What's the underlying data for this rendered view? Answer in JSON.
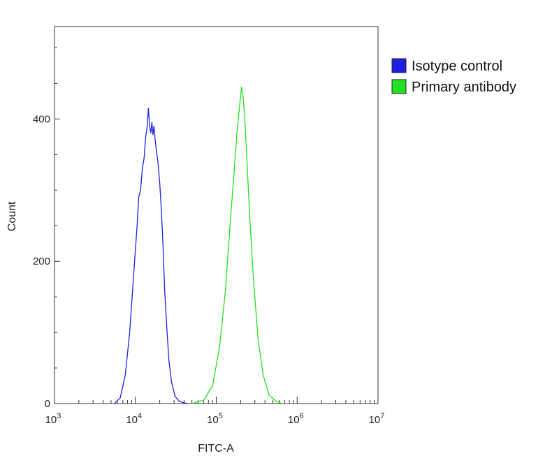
{
  "chart_data": {
    "type": "line",
    "title": "",
    "xlabel": "FITC-A",
    "ylabel": "Count",
    "x_scale": "log",
    "xlim": [
      1000,
      10000000
    ],
    "ylim": [
      0,
      530
    ],
    "grid": false,
    "legend_placement": "right-top-outside",
    "x_ticks": [
      {
        "value": 1000,
        "base": "10",
        "exp": "3"
      },
      {
        "value": 10000,
        "base": "10",
        "exp": "4"
      },
      {
        "value": 100000,
        "base": "10",
        "exp": "5"
      },
      {
        "value": 1000000,
        "base": "10",
        "exp": "6"
      },
      {
        "value": 10000000,
        "base": "10",
        "exp": "7"
      }
    ],
    "y_ticks": [
      {
        "value": 0,
        "label": "0"
      },
      {
        "value": 200,
        "label": "200"
      },
      {
        "value": 400,
        "label": "400"
      }
    ],
    "series": [
      {
        "name": "Isotype control",
        "color": "#1f1fe0",
        "x": [
          5500,
          6500,
          7500,
          8500,
          9500,
          10500,
          11000,
          11600,
          12200,
          12800,
          13400,
          14000,
          14500,
          15000,
          15500,
          16000,
          16500,
          17000,
          17500,
          18200,
          19000,
          20000,
          21000,
          22000,
          23000,
          24500,
          26000,
          28000,
          31000,
          35000,
          40000,
          45000
        ],
        "y": [
          0,
          8,
          40,
          100,
          180,
          250,
          290,
          300,
          330,
          345,
          375,
          390,
          415,
          390,
          380,
          395,
          378,
          390,
          372,
          355,
          340,
          310,
          270,
          220,
          160,
          105,
          60,
          30,
          10,
          3,
          1,
          0
        ]
      },
      {
        "name": "Primary antibody",
        "color": "#22e022",
        "x": [
          50000,
          70000,
          90000,
          110000,
          130000,
          150000,
          165000,
          180000,
          195000,
          205000,
          215000,
          225000,
          240000,
          260000,
          290000,
          330000,
          380000,
          450000,
          550000,
          650000
        ],
        "y": [
          0,
          5,
          25,
          80,
          160,
          260,
          320,
          380,
          420,
          445,
          430,
          400,
          340,
          260,
          170,
          90,
          40,
          12,
          3,
          0
        ]
      }
    ]
  }
}
